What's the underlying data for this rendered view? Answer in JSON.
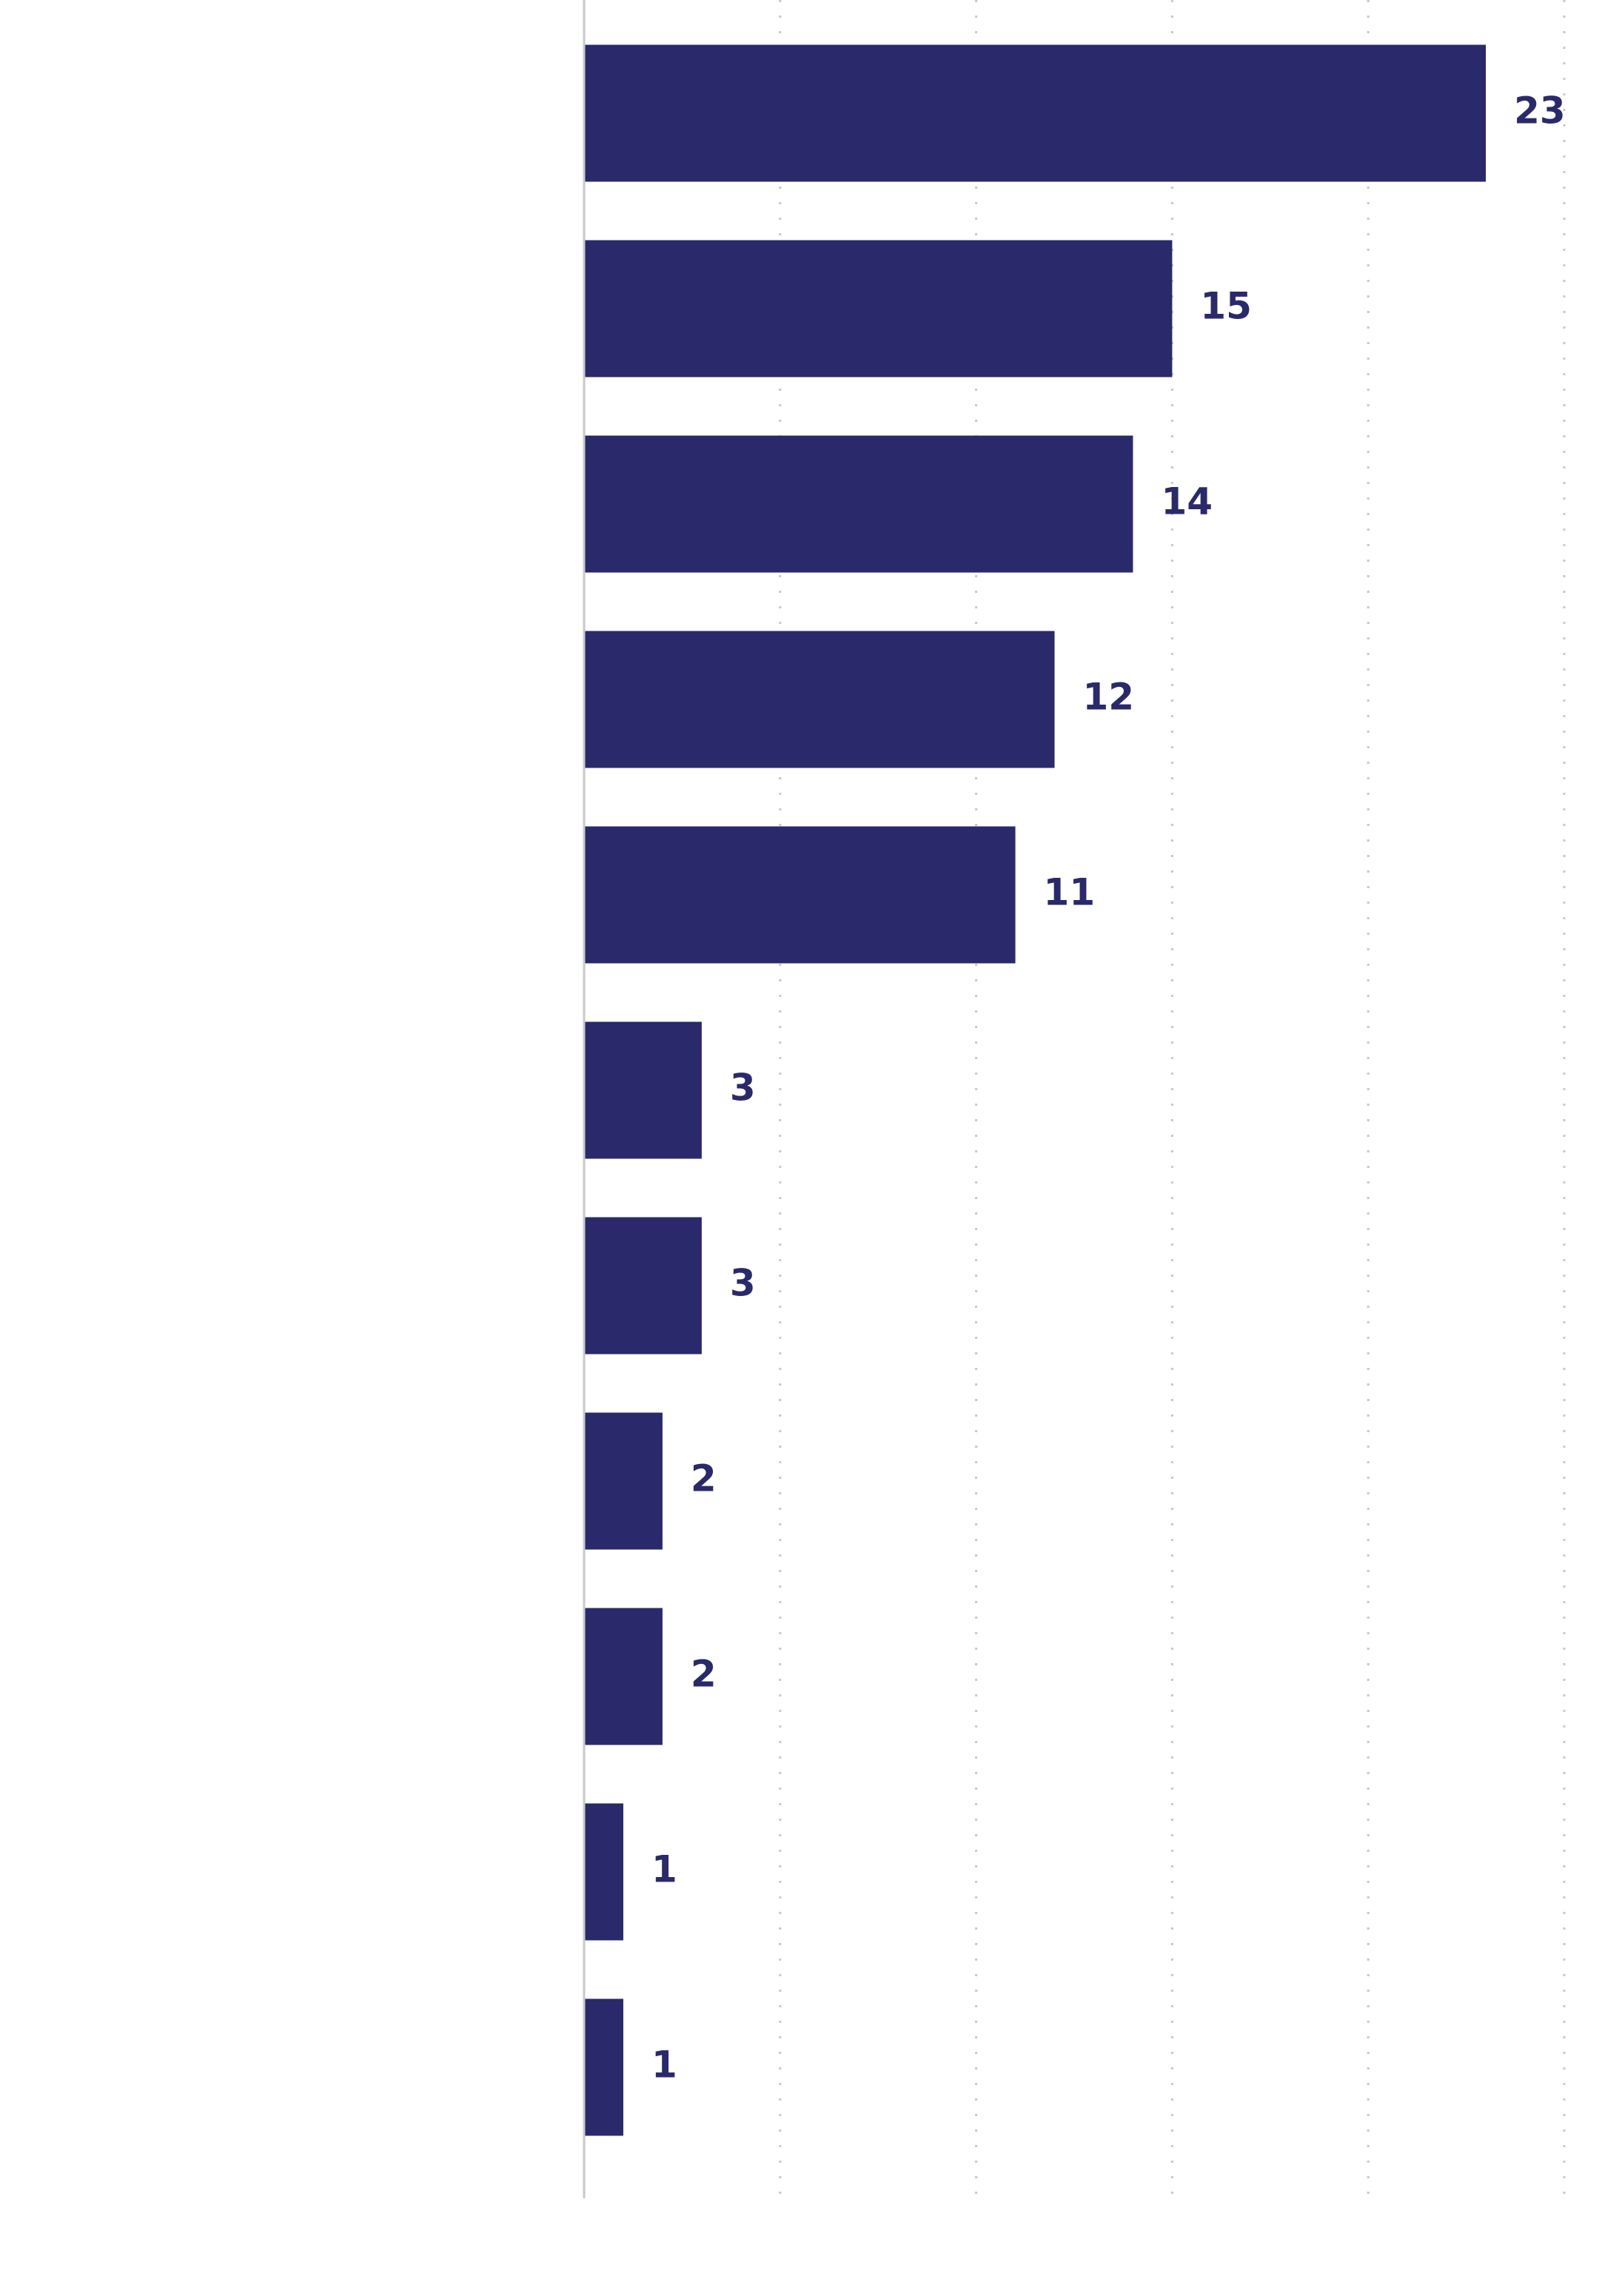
{
  "chart_data": {
    "type": "bar",
    "orientation": "horizontal",
    "categories": [
      null,
      null,
      null,
      null,
      null,
      null,
      null,
      null,
      null,
      null,
      null
    ],
    "values": [
      23,
      15,
      14,
      12,
      11,
      3,
      3,
      2,
      2,
      1,
      1
    ],
    "color": "#29296b",
    "xlim": [
      0,
      25
    ],
    "xticks": [
      0,
      5,
      10,
      15,
      20,
      25
    ],
    "grid": true
  }
}
